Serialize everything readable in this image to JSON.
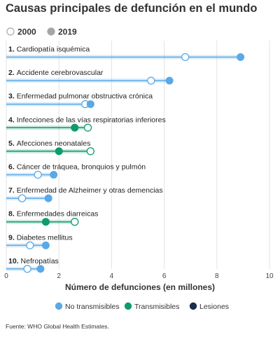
{
  "chart_data": {
    "type": "dot-plot",
    "title": "Causas principales de defunción en el mundo",
    "xlabel": "Número de defunciones (en millones)",
    "xlim": [
      0,
      10
    ],
    "xticks": [
      "0",
      "2",
      "4",
      "6",
      "8",
      "10"
    ],
    "year_legend": [
      {
        "label": "2000",
        "fill": "#ffffff",
        "stroke": "#aaaaaa"
      },
      {
        "label": "2019",
        "fill": "#a6a6a6",
        "stroke": "#a6a6a6"
      }
    ],
    "group_legend": [
      {
        "label": "No transmisibles",
        "color": "#5aa9e6"
      },
      {
        "label": "Transmisibles",
        "color": "#0f9b6e"
      },
      {
        "label": "Lesiones",
        "color": "#1c2b4f"
      }
    ],
    "categories": [
      {
        "num": "1.",
        "name": "Cardiopatía isquémica",
        "group": 0,
        "v2000": 6.8,
        "v2019": 8.9
      },
      {
        "num": "2.",
        "name": "Accidente cerebrovascular",
        "group": 0,
        "v2000": 5.5,
        "v2019": 6.2
      },
      {
        "num": "3.",
        "name": "Enfermedad pulmonar obstructiva crónica",
        "group": 0,
        "v2000": 3.0,
        "v2019": 3.2
      },
      {
        "num": "4.",
        "name": "Infecciones de las vías respiratorias inferiores",
        "group": 1,
        "v2000": 3.1,
        "v2019": 2.6
      },
      {
        "num": "5.",
        "name": "Afecciones neonatales",
        "group": 1,
        "v2000": 3.2,
        "v2019": 2.0
      },
      {
        "num": "6.",
        "name": "Cáncer de tráquea, bronquios y pulmón",
        "group": 0,
        "v2000": 1.2,
        "v2019": 1.8
      },
      {
        "num": "7.",
        "name": "Enfermedad de Alzheimer y otras demencias",
        "group": 0,
        "v2000": 0.6,
        "v2019": 1.6
      },
      {
        "num": "8.",
        "name": "Enfermedades diarreicas",
        "group": 1,
        "v2000": 2.6,
        "v2019": 1.5
      },
      {
        "num": "9.",
        "name": "Diabetes mellitus",
        "group": 0,
        "v2000": 0.9,
        "v2019": 1.5
      },
      {
        "num": "10.",
        "name": "Nefropatías",
        "group": 0,
        "v2000": 0.8,
        "v2019": 1.3
      }
    ],
    "source": "Fuente: WHO Global Health Estimates."
  }
}
